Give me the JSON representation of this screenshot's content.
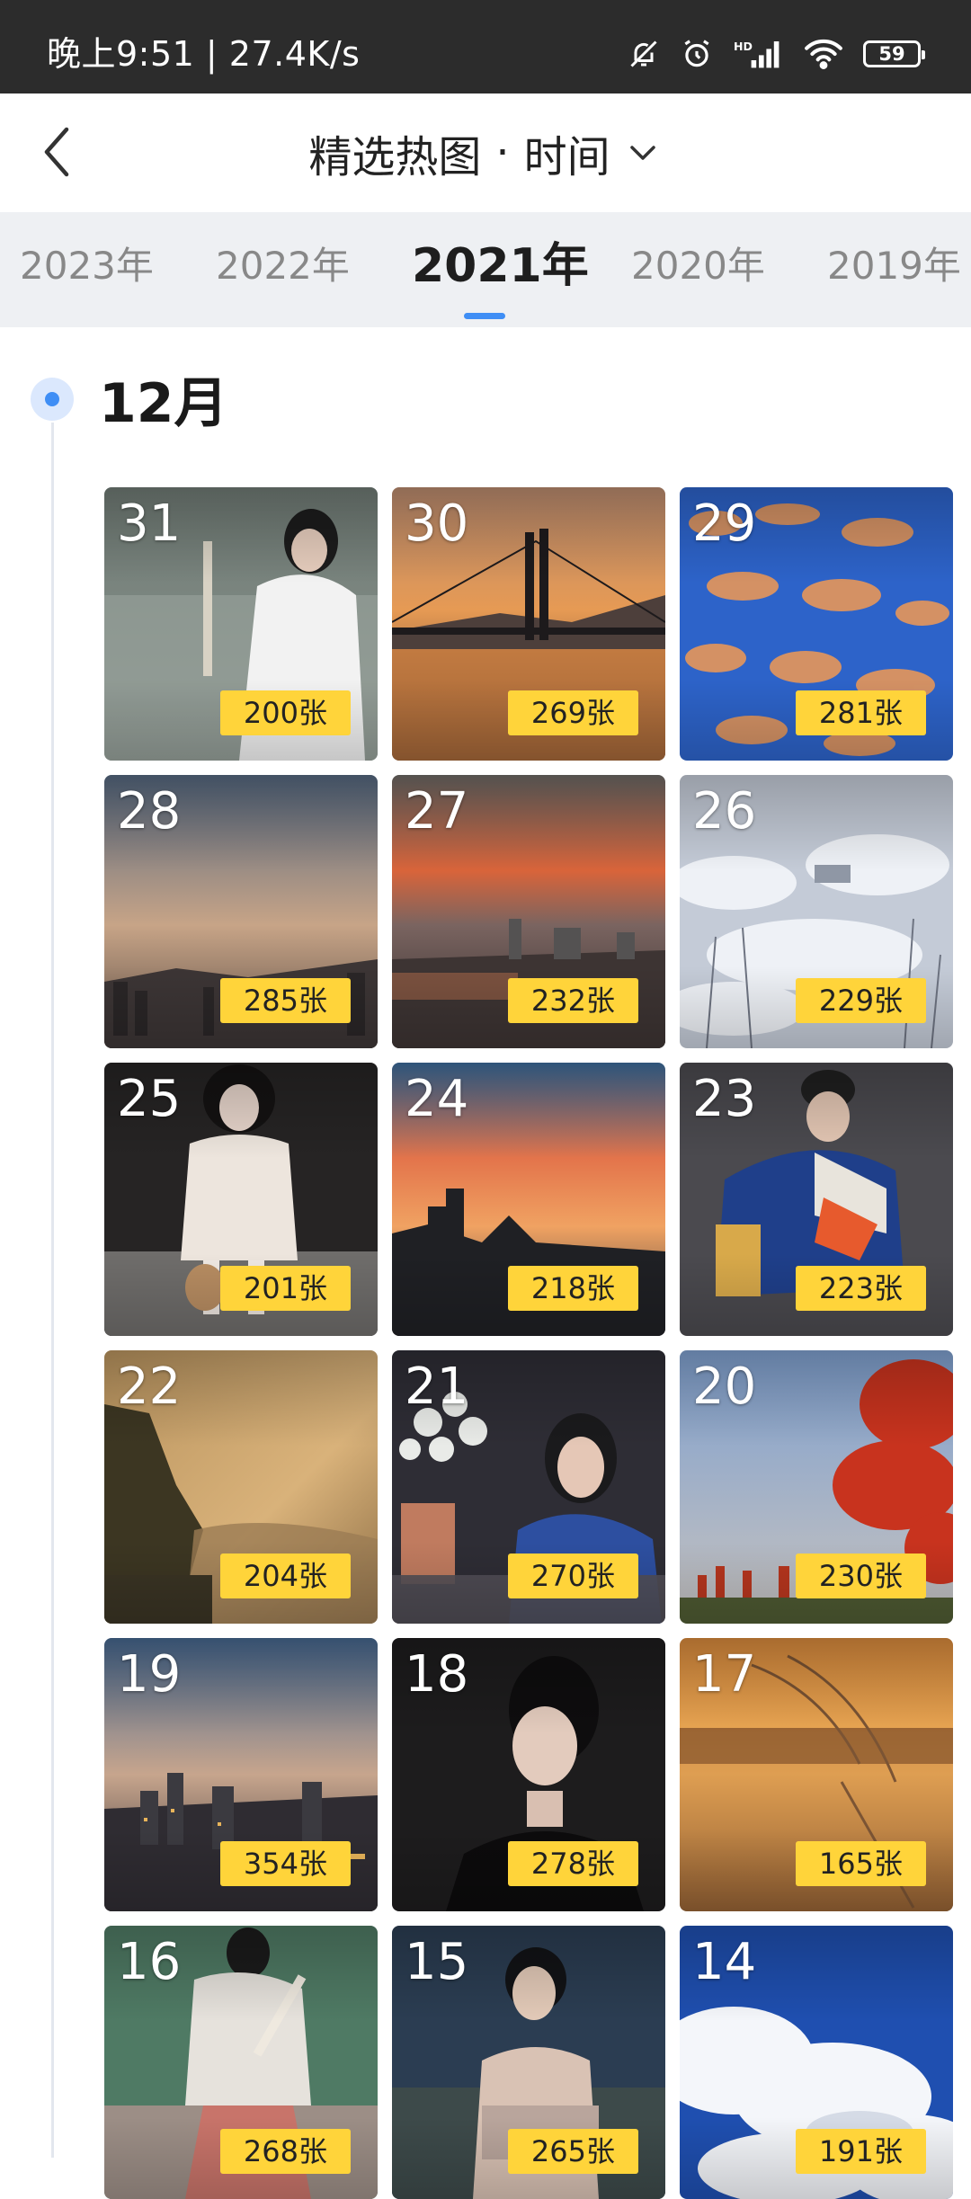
{
  "status_bar": {
    "time_speed": "晚上9:51 | 27.4K/s",
    "battery": "59",
    "icons": [
      "mute-bell-icon",
      "alarm-icon",
      "hd-signal-icon",
      "wifi-icon",
      "battery-icon"
    ]
  },
  "header": {
    "title_left": "精选热图",
    "title_dot": "·",
    "title_right": "时间",
    "icons": [
      "back-arrow-icon",
      "chevron-down-icon"
    ]
  },
  "years": {
    "items": [
      "2023年",
      "2022年",
      "2021年",
      "2020年",
      "2019年"
    ],
    "active": "2021年",
    "accent_color": "#3f8ef5"
  },
  "month": {
    "label": "12月"
  },
  "tiles": [
    {
      "day": "31",
      "count": "200张"
    },
    {
      "day": "30",
      "count": "269张"
    },
    {
      "day": "29",
      "count": "281张"
    },
    {
      "day": "28",
      "count": "285张"
    },
    {
      "day": "27",
      "count": "232张"
    },
    {
      "day": "26",
      "count": "229张"
    },
    {
      "day": "25",
      "count": "201张"
    },
    {
      "day": "24",
      "count": "218张"
    },
    {
      "day": "23",
      "count": "223张"
    },
    {
      "day": "22",
      "count": "204张"
    },
    {
      "day": "21",
      "count": "270张"
    },
    {
      "day": "20",
      "count": "230张"
    },
    {
      "day": "19",
      "count": "354张"
    },
    {
      "day": "18",
      "count": "278张"
    },
    {
      "day": "17",
      "count": "165张"
    },
    {
      "day": "16",
      "count": "268张"
    },
    {
      "day": "15",
      "count": "265张"
    },
    {
      "day": "14",
      "count": "191张"
    }
  ],
  "colors": {
    "badge": "#ffd43a",
    "status_bar": "#2c2c2c",
    "year_bar": "#eef0f3"
  }
}
